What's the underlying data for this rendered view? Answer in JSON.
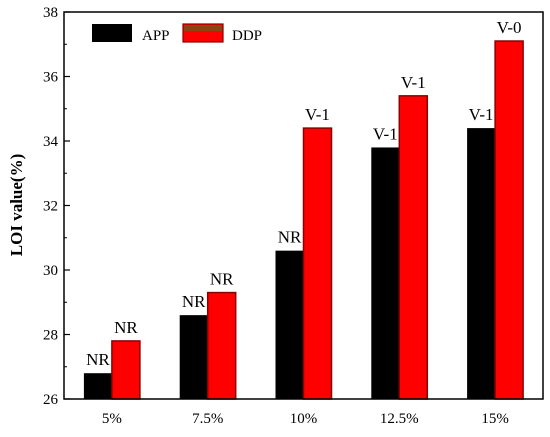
{
  "chart_data": {
    "type": "bar",
    "title": "",
    "xlabel": "",
    "ylabel": "LOI value(%)",
    "ylim": [
      26,
      38
    ],
    "yticks": [
      26,
      28,
      30,
      32,
      34,
      36,
      38
    ],
    "categories": [
      "5%",
      "7.5%",
      "10%",
      "12.5%",
      "15%"
    ],
    "series": [
      {
        "name": "APP",
        "color": "#000000",
        "values": [
          26.8,
          28.6,
          30.6,
          33.8,
          34.4
        ],
        "labels": [
          "NR",
          "NR",
          "NR",
          "V-1",
          "V-1"
        ]
      },
      {
        "name": "DDP",
        "color": "#ff0000",
        "edge_color": "#8b0000",
        "values": [
          27.8,
          29.3,
          34.4,
          35.4,
          37.1
        ],
        "labels": [
          "NR",
          "NR",
          "V-1",
          "V-1",
          "V-0"
        ]
      }
    ],
    "legend": {
      "position": "top-left"
    },
    "grid": false
  }
}
